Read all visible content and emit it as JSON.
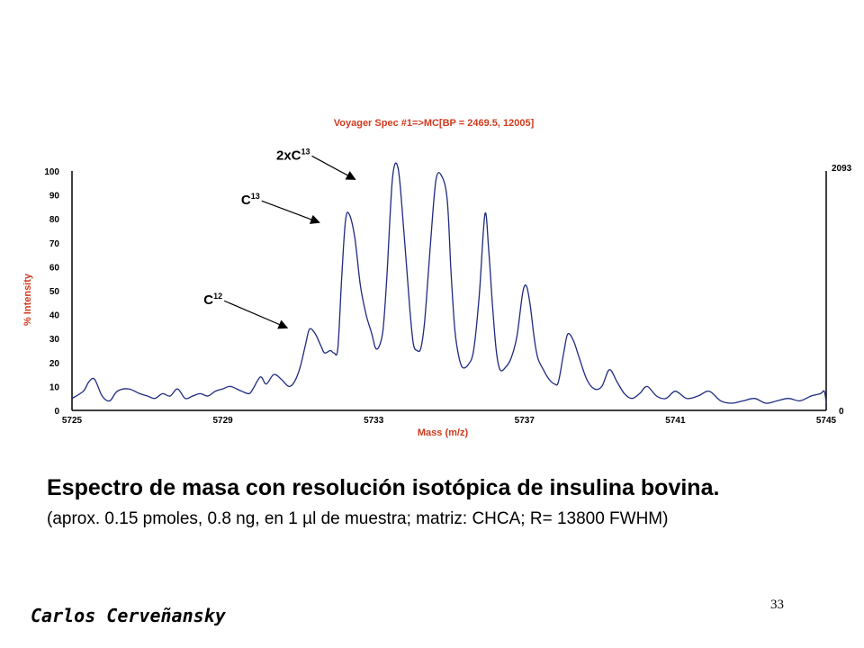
{
  "chart_data": {
    "type": "line",
    "title": "Voyager Spec #1=>MC[BP = 2469.5, 12005]",
    "xlabel": "Mass (m/z)",
    "ylabel": "% Intensity",
    "xlim": [
      5725,
      5745
    ],
    "ylim": [
      0,
      100
    ],
    "x_ticks": [
      "5725",
      "5729",
      "5733",
      "5737",
      "5741",
      "5745"
    ],
    "y_ticks": [
      "0",
      "10",
      "20",
      "30",
      "40",
      "50",
      "60",
      "70",
      "80",
      "90",
      "100"
    ],
    "right_axis_top": "2093",
    "right_axis_bottom": "0",
    "grid": false,
    "colors": {
      "line": "#1f2a80",
      "title": "#d13a1e",
      "axis": "#000000"
    },
    "series": [
      {
        "x": [
          5725,
          5725.3,
          5725.45,
          5725.6,
          5725.8,
          5726,
          5726.2,
          5726.5,
          5726.8,
          5727,
          5727.2,
          5727.4,
          5727.6,
          5727.8,
          5728,
          5728.2,
          5728.4,
          5728.6,
          5728.8,
          5729,
          5729.2,
          5729.5,
          5729.7,
          5729.8,
          5730,
          5730.15,
          5730.35,
          5730.55,
          5730.75,
          5730.9,
          5731.05,
          5731.2,
          5731.3,
          5731.45,
          5731.6,
          5731.7,
          5731.85,
          5731.95,
          5732.05,
          5732.15,
          5732.25,
          5732.35,
          5732.5,
          5732.65,
          5732.8,
          5732.95,
          5733.05,
          5733.15,
          5733.25,
          5733.35,
          5733.5,
          5733.65,
          5733.8,
          5733.95,
          5734.05,
          5734.15,
          5734.25,
          5734.35,
          5734.5,
          5734.65,
          5734.8,
          5734.95,
          5735.05,
          5735.15,
          5735.25,
          5735.35,
          5735.5,
          5735.65,
          5735.8,
          5735.95,
          5736.05,
          5736.15,
          5736.25,
          5736.35,
          5736.5,
          5736.65,
          5736.8,
          5736.95,
          5737.05,
          5737.15,
          5737.25,
          5737.35,
          5737.5,
          5737.65,
          5737.8,
          5737.9,
          5738.05,
          5738.15,
          5738.3,
          5738.45,
          5738.65,
          5738.85,
          5739.05,
          5739.25,
          5739.45,
          5739.65,
          5739.85,
          5740.05,
          5740.25,
          5740.5,
          5740.75,
          5741,
          5741.3,
          5741.6,
          5741.9,
          5742.2,
          5742.5,
          5742.8,
          5743.1,
          5743.4,
          5743.7,
          5744,
          5744.3,
          5744.6,
          5744.85,
          5744.95,
          5745
        ],
        "values": [
          5,
          8,
          12,
          13,
          6,
          4,
          8,
          9,
          7,
          6,
          5,
          7,
          6,
          9,
          5,
          6,
          7,
          6,
          8,
          9,
          10,
          8,
          7,
          9,
          14,
          11,
          15,
          13,
          10,
          12,
          18,
          28,
          34,
          32,
          27,
          24,
          25,
          24,
          26,
          55,
          79,
          82,
          72,
          52,
          40,
          32,
          26,
          27,
          34,
          56,
          97,
          101,
          75,
          44,
          28,
          25,
          26,
          37,
          68,
          96,
          98,
          88,
          58,
          34,
          23,
          18,
          19,
          25,
          48,
          82,
          67,
          44,
          25,
          17,
          18,
          22,
          31,
          49,
          52,
          44,
          31,
          22,
          17,
          13,
          11,
          12,
          25,
          32,
          29,
          22,
          13,
          9,
          10,
          17,
          12,
          7,
          5,
          7,
          10,
          6,
          5,
          8,
          5,
          6,
          8,
          4,
          3,
          4,
          5,
          3,
          4,
          5,
          4,
          6,
          7,
          8,
          3
        ]
      }
    ],
    "annotations": [
      {
        "base": "2xC",
        "sup": "13",
        "x": 5732.65,
        "y": 98
      },
      {
        "base": "C",
        "sup": "13",
        "x": 5731.7,
        "y": 80
      },
      {
        "base": "C",
        "sup": "12",
        "x": 5730.85,
        "y": 36
      }
    ]
  },
  "caption": {
    "title": "Espectro de masa con resolución isotópica de insulina bovina.",
    "subtitle": "(aprox. 0.15 pmoles, 0.8 ng, en 1 µl de muestra; matriz: CHCA; R= 13800 FWHM)"
  },
  "author": "Carlos Cerveñansky",
  "page_number": "33"
}
